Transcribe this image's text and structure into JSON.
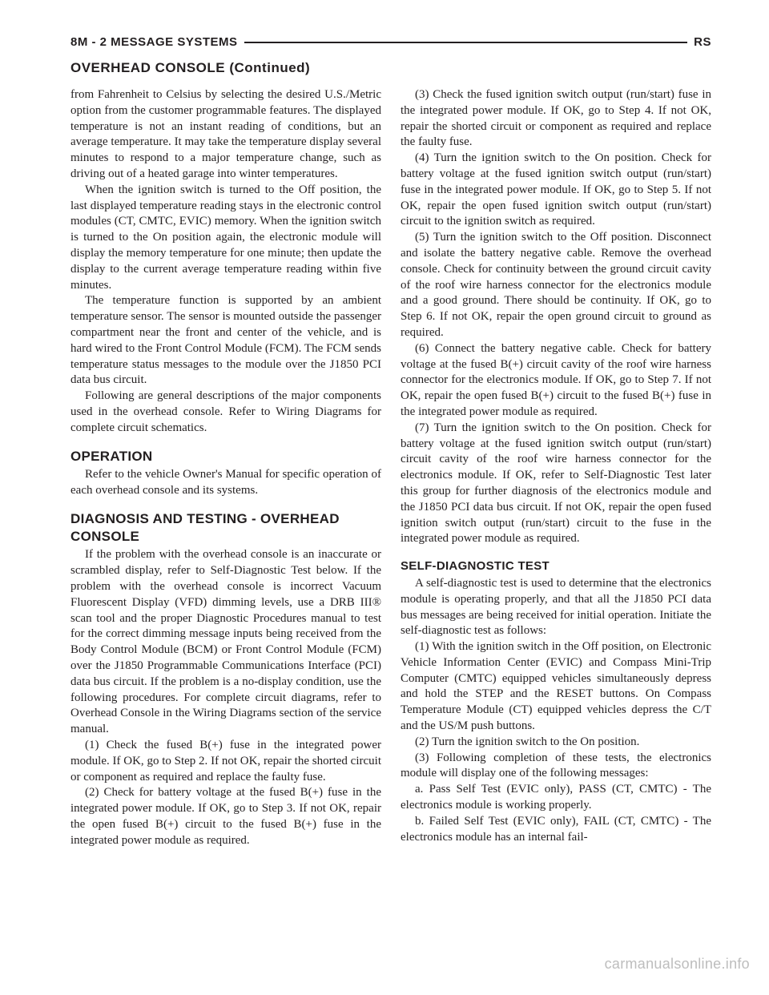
{
  "header": {
    "left": "8M - 2    MESSAGE SYSTEMS",
    "right": "RS"
  },
  "subheader": "OVERHEAD CONSOLE (Continued)",
  "leftCol": {
    "p1": "from Fahrenheit to Celsius by selecting the desired U.S./Metric option from the customer programmable features. The displayed temperature is not an instant reading of conditions, but an average temperature. It may take the temperature display several minutes to respond to a major temperature change, such as driving out of a heated garage into winter temperatures.",
    "p2": "When the ignition switch is turned to the Off position, the last displayed temperature reading stays in the electronic control modules (CT, CMTC, EVIC) memory. When the ignition switch is turned to the On position again, the electronic module will display the memory temperature for one minute; then update the display to the current average temperature reading within five minutes.",
    "p3": "The temperature function is supported by an ambient temperature sensor. The sensor is mounted outside the passenger compartment near the front and center of the vehicle, and is hard wired to the Front Control Module (FCM). The FCM sends temperature status messages to the module over the J1850 PCI data bus circuit.",
    "p4": "Following are general descriptions of the major components used in the overhead console. Refer to Wiring Diagrams for complete circuit schematics.",
    "opHeading": "OPERATION",
    "opBody": "Refer to the vehicle Owner's Manual for specific operation of each overhead console and its systems.",
    "diagHeading": "DIAGNOSIS AND TESTING - OVERHEAD CONSOLE",
    "diagBody": "If the problem with the overhead console is an inaccurate or scrambled display, refer to Self-Diagnostic Test below. If the problem with the overhead console is incorrect Vacuum Fluorescent Display (VFD) dimming levels, use a DRB III® scan tool and the proper Diagnostic Procedures manual to test for the correct dimming message inputs being received from the Body Control Module (BCM) or Front Control Module (FCM) over the J1850 Programmable Communications Interface (PCI) data bus circuit. If the problem is a no-display condition, use the following procedures. For complete circuit diagrams, refer to Overhead Console in the Wiring Diagrams section of the service manual.",
    "s1": "(1) Check the fused B(+) fuse in the integrated power module. If OK, go to Step 2. If not OK, repair the shorted circuit or component as required and replace the faulty fuse.",
    "s2": "(2) Check for battery voltage at the fused B(+) fuse in the integrated power module. If OK, go to Step 3. If not OK, repair the open fused B(+) circuit to the fused B(+) fuse in the integrated power module as required."
  },
  "rightCol": {
    "s3": "(3) Check the fused ignition switch output (run/start) fuse in the integrated power module. If OK, go to Step 4. If not OK, repair the shorted circuit or component as required and replace the faulty fuse.",
    "s4": "(4) Turn the ignition switch to the On position. Check for battery voltage at the fused ignition switch output (run/start) fuse in the integrated power module. If OK, go to Step 5. If not OK, repair the open fused ignition switch output (run/start) circuit to the ignition switch as required.",
    "s5": "(5) Turn the ignition switch to the Off position. Disconnect and isolate the battery negative cable. Remove the overhead console. Check for continuity between the ground circuit cavity of the roof wire harness connector for the electronics module and a good ground. There should be continuity. If OK, go to Step 6. If not OK, repair the open ground circuit to ground as required.",
    "s6": "(6) Connect the battery negative cable. Check for battery voltage at the fused B(+) circuit cavity of the roof wire harness connector for the electronics module. If OK, go to Step 7. If not OK, repair the open fused B(+) circuit to the fused B(+) fuse in the integrated power module as required.",
    "s7": "(7) Turn the ignition switch to the On position. Check for battery voltage at the fused ignition switch output (run/start) circuit cavity of the roof wire harness connector for the electronics module. If OK, refer to Self-Diagnostic Test later this group for further diagnosis of the electronics module and the J1850 PCI data bus circuit. If not OK, repair the open fused ignition switch output (run/start) circuit to the fuse in the integrated power module as required.",
    "selfHeading": "SELF-DIAGNOSTIC TEST",
    "selfBody": "A self-diagnostic test is used to determine that the electronics module is operating properly, and that all the J1850 PCI data bus messages are being received for initial operation. Initiate the self-diagnostic test as follows:",
    "t1": "(1) With the ignition switch in the Off position, on Electronic Vehicle Information Center (EVIC) and Compass Mini-Trip Computer (CMTC) equipped vehicles simultaneously depress and hold the STEP and the RESET buttons. On Compass Temperature Module (CT) equipped vehicles depress the C/T and the US/M push buttons.",
    "t2": "(2) Turn the ignition switch to the On position.",
    "t3": "(3) Following completion of these tests, the electronics module will display one of the following messages:",
    "ta": "a. Pass Self Test (EVIC only), PASS (CT, CMTC) - The electronics module is working properly.",
    "tb": "b. Failed Self Test (EVIC only), FAIL (CT, CMTC) - The electronics module has an internal fail-"
  },
  "watermark": "carmanualsonline.info"
}
